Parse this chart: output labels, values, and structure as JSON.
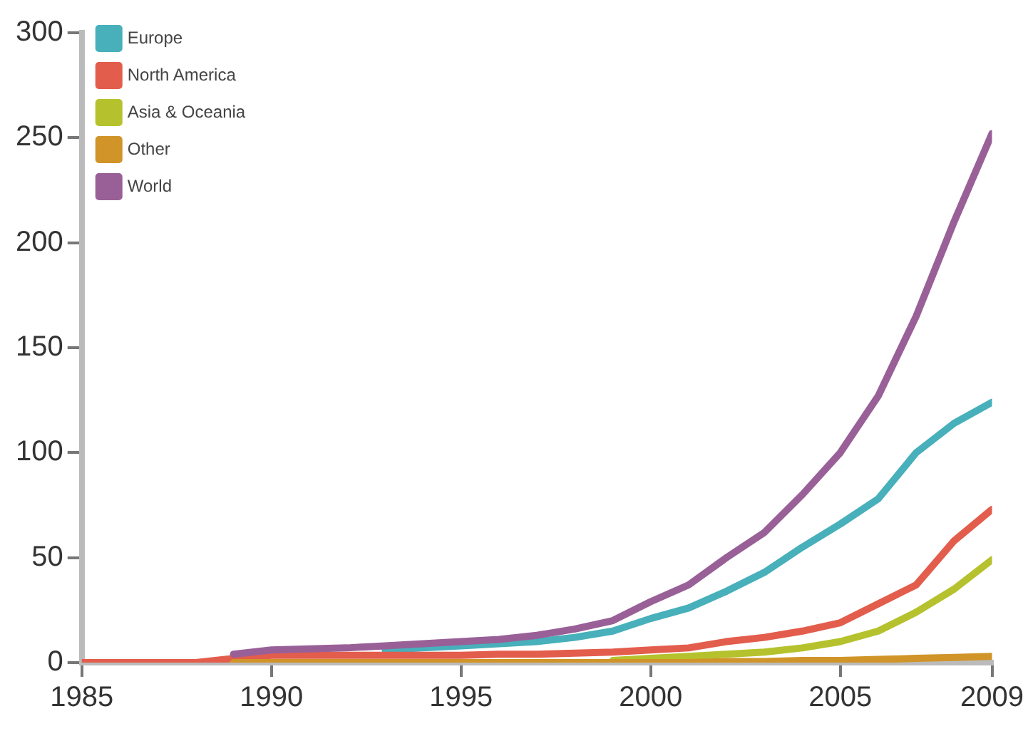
{
  "chart_data": {
    "type": "line",
    "x": [
      1985,
      1986,
      1987,
      1988,
      1989,
      1990,
      1991,
      1992,
      1993,
      1994,
      1995,
      1996,
      1997,
      1998,
      1999,
      2000,
      2001,
      2002,
      2003,
      2004,
      2005,
      2006,
      2007,
      2008,
      2009
    ],
    "series": [
      {
        "name": "Europe",
        "color": "#47b0bb",
        "values": [
          null,
          null,
          null,
          null,
          null,
          null,
          null,
          null,
          6,
          7,
          8,
          9,
          10,
          12,
          15,
          21,
          26,
          34,
          43,
          55,
          66,
          78,
          100,
          114,
          124
        ]
      },
      {
        "name": "North America",
        "color": "#e35d4d",
        "values": [
          0,
          0,
          0,
          0,
          2,
          3.5,
          3.5,
          3.5,
          3.5,
          3.5,
          3.5,
          4,
          4,
          4.5,
          5,
          6,
          7,
          10,
          12,
          15,
          19,
          28,
          37,
          58,
          73
        ]
      },
      {
        "name": "Asia & Oceania",
        "color": "#b5c22d",
        "values": [
          null,
          null,
          null,
          null,
          null,
          null,
          null,
          null,
          null,
          null,
          null,
          null,
          null,
          null,
          1,
          2,
          3,
          4,
          5,
          7,
          10,
          15,
          24,
          35,
          49
        ]
      },
      {
        "name": "Other",
        "color": "#d09428",
        "values": [
          null,
          null,
          null,
          null,
          0,
          0,
          0,
          0,
          0,
          0,
          0,
          0,
          0,
          0,
          0,
          0,
          0,
          0.5,
          0.5,
          1,
          1,
          1.5,
          2,
          2.5,
          3
        ]
      },
      {
        "name": "World",
        "color": "#996098",
        "values": [
          null,
          null,
          null,
          null,
          4,
          6,
          6.5,
          7,
          8,
          9,
          10,
          11,
          13,
          16,
          20,
          29,
          37,
          50,
          62,
          80,
          100,
          127,
          165,
          210,
          252
        ]
      }
    ],
    "xlim": [
      1985,
      2009
    ],
    "xticks": [
      1985,
      1990,
      1995,
      2000,
      2005,
      2009
    ],
    "ylim": [
      0,
      300
    ],
    "yticks": [
      0,
      50,
      100,
      150,
      200,
      250,
      300
    ],
    "grid": false,
    "legend": "top left",
    "marker": "none",
    "line_style": "solid"
  }
}
